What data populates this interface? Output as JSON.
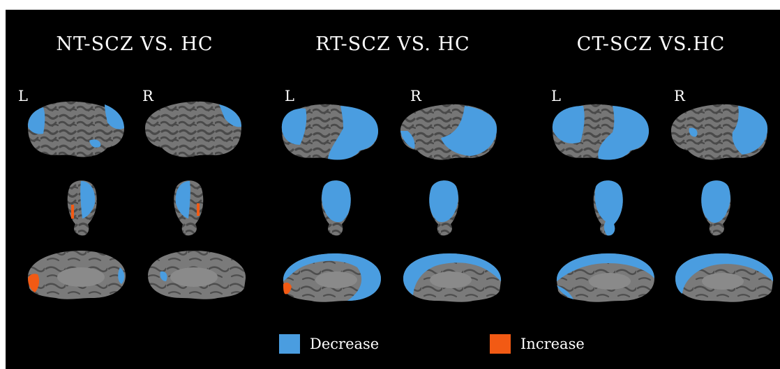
{
  "panels": [
    {
      "title": "NT-SCZ VS. HC",
      "left_label": "L",
      "right_label": "R"
    },
    {
      "title": "RT-SCZ VS. HC",
      "left_label": "L",
      "right_label": "R"
    },
    {
      "title": "CT-SCZ VS.HC",
      "left_label": "L",
      "right_label": "R"
    }
  ],
  "legend": {
    "decrease_label": "Decrease",
    "increase_label": "Increase",
    "decrease_color": "#4a9de0",
    "increase_color": "#f25a14"
  },
  "colors": {
    "background": "#000000",
    "cortex_gray": "#737373",
    "sulci_dark": "#4a4a4a"
  }
}
